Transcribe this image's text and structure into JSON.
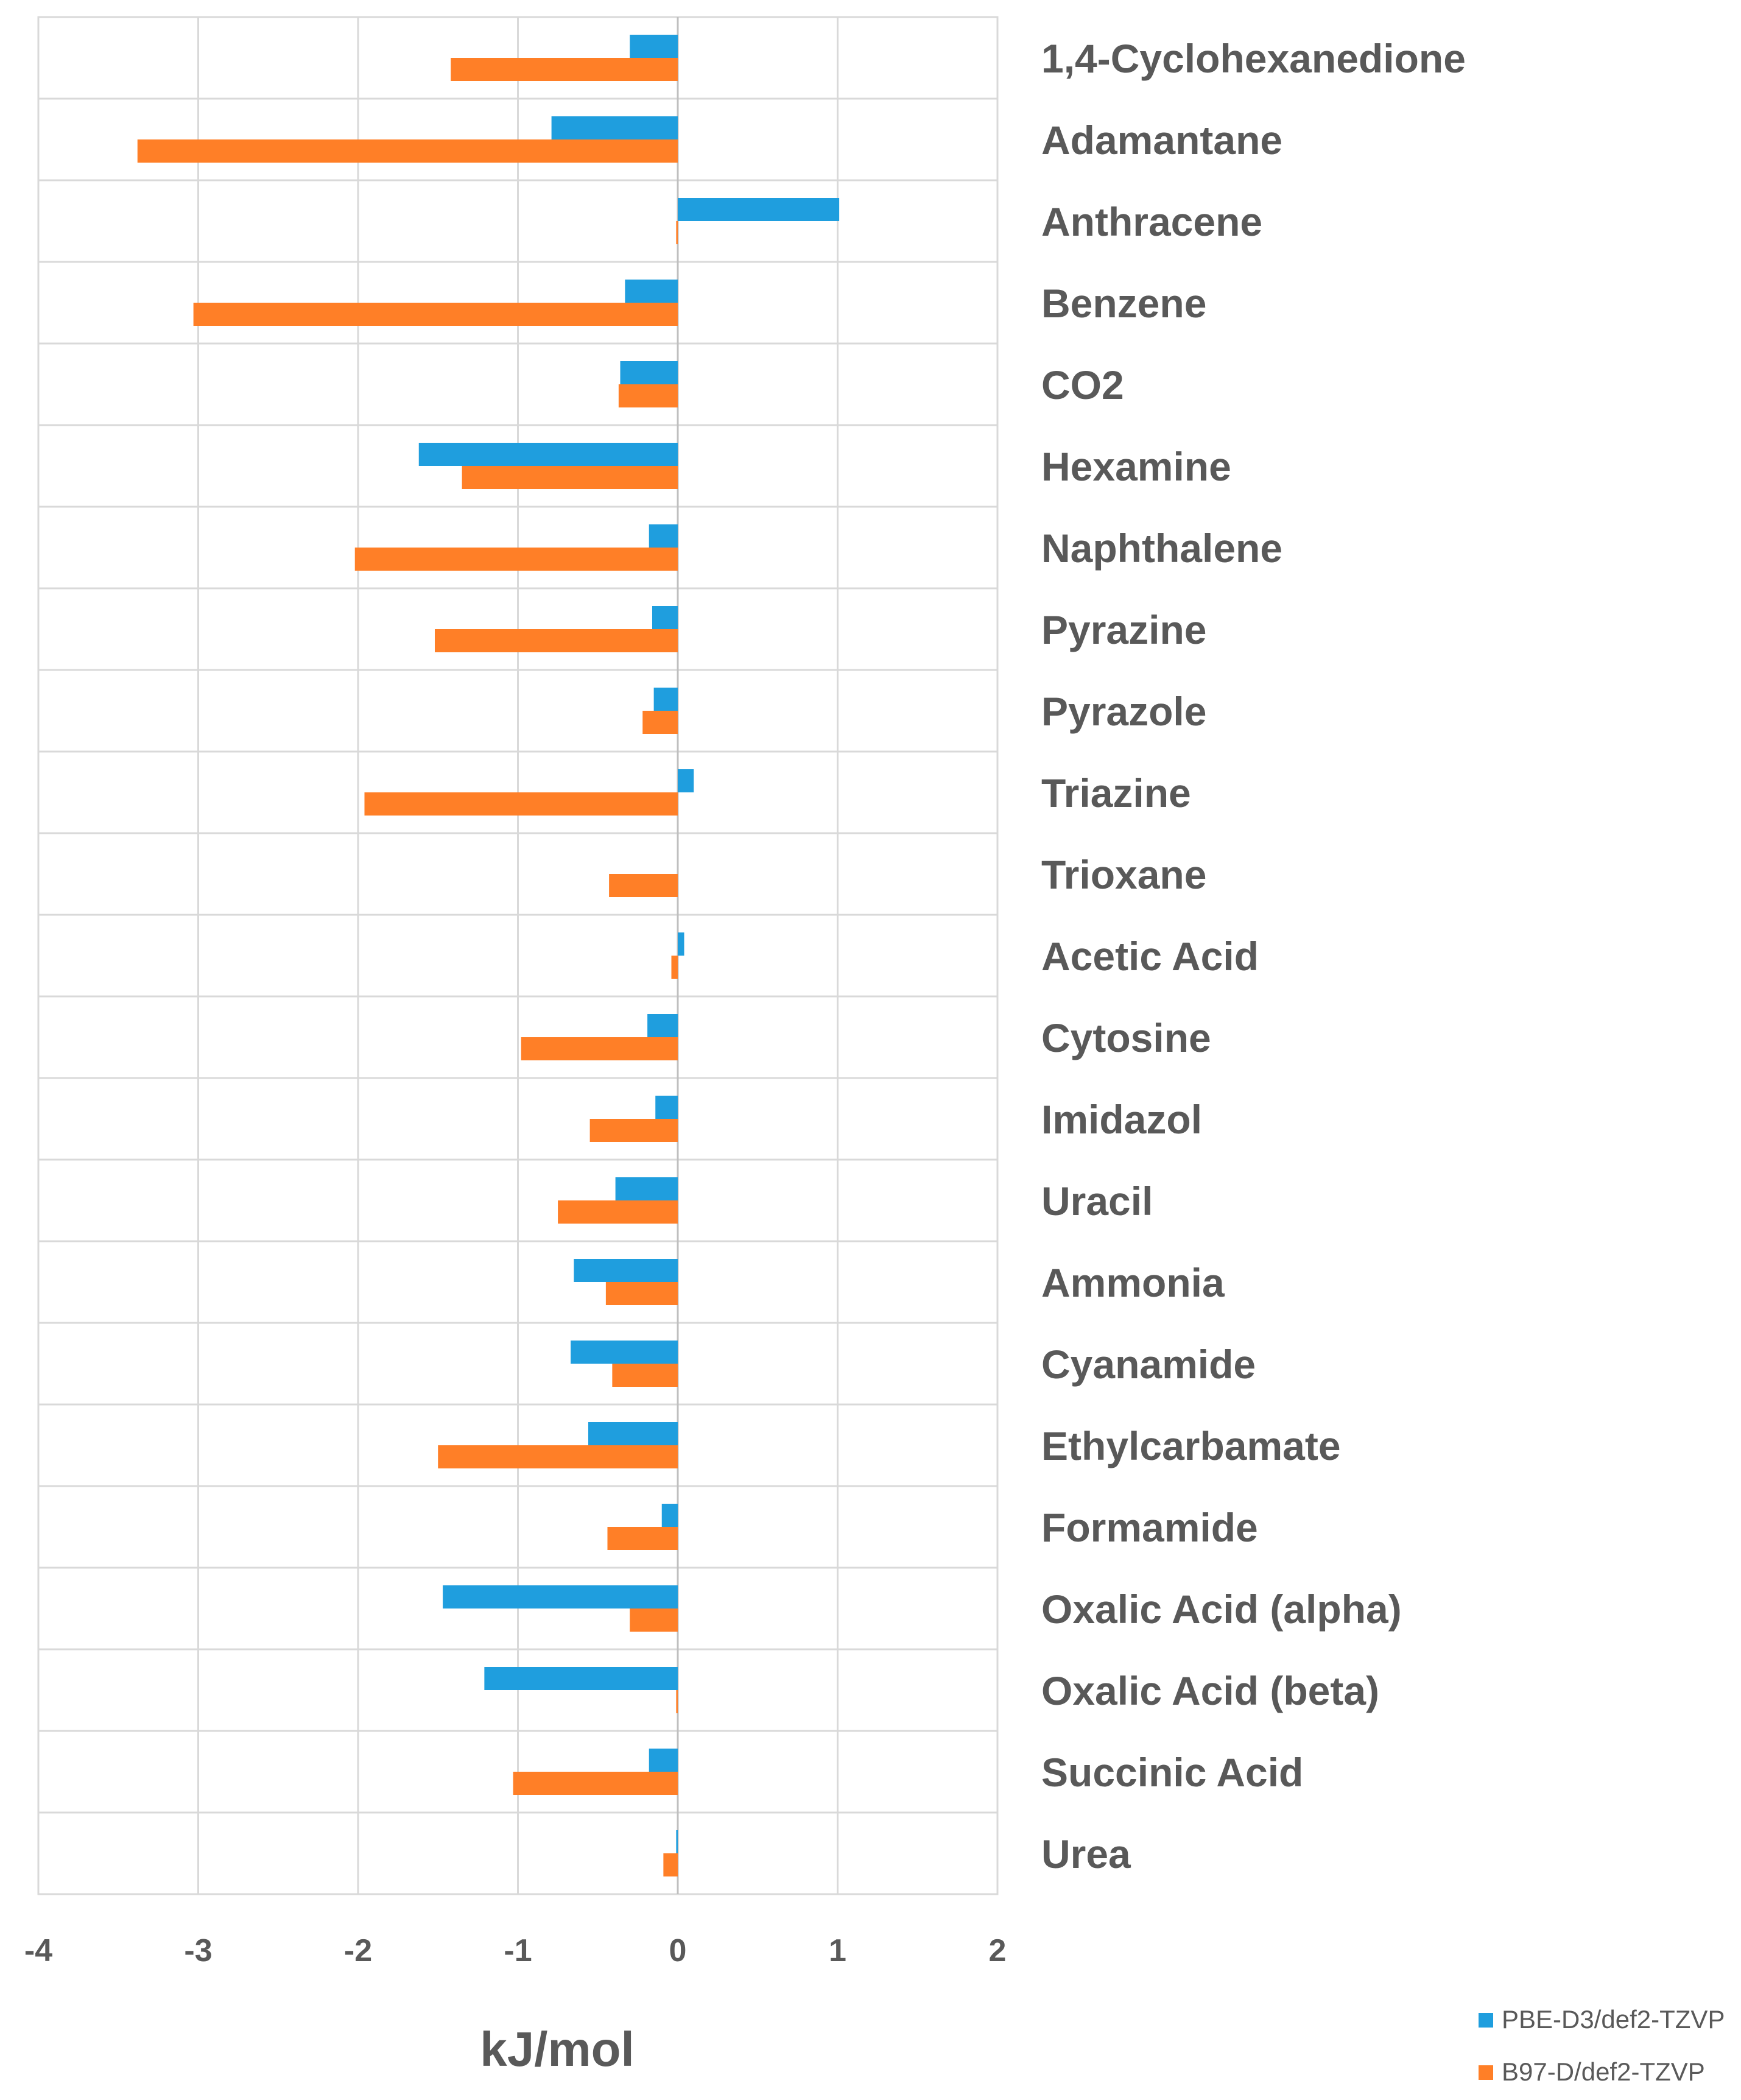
{
  "chart_data": {
    "type": "bar",
    "orientation": "horizontal",
    "title": "",
    "xlabel": "kJ/mol",
    "ylabel": "",
    "xlim": [
      -4,
      2
    ],
    "x_ticks": [
      -4,
      -3,
      -2,
      -1,
      0,
      1,
      2
    ],
    "grid": true,
    "legend_position": "bottom-right",
    "categories": [
      "1,4-Cyclohexanedione",
      "Adamantane",
      "Anthracene",
      "Benzene",
      "CO2",
      "Hexamine",
      "Naphthalene",
      "Pyrazine",
      "Pyrazole",
      "Triazine",
      "Trioxane",
      "Acetic Acid",
      "Cytosine",
      "Imidazol",
      "Uracil",
      "Ammonia",
      "Cyanamide",
      "Ethylcarbamate",
      "Formamide",
      "Oxalic Acid (alpha)",
      "Oxalic Acid (beta)",
      "Succinic Acid",
      "Urea"
    ],
    "series": [
      {
        "name": "PBE-D3/def2-TZVP",
        "color": "#1f9ede",
        "values": [
          -0.3,
          -0.79,
          1.01,
          -0.33,
          -0.36,
          -1.62,
          -0.18,
          -0.16,
          -0.15,
          0.1,
          0.0,
          0.04,
          -0.19,
          -0.14,
          -0.39,
          -0.65,
          -0.67,
          -0.56,
          -0.1,
          -1.47,
          -1.21,
          -0.18,
          -0.01
        ]
      },
      {
        "name": "B97-D/def2-TZVP",
        "color": "#ff7f27",
        "values": [
          -1.42,
          -3.38,
          -0.01,
          -3.03,
          -0.37,
          -1.35,
          -2.02,
          -1.52,
          -0.22,
          -1.96,
          -0.43,
          -0.04,
          -0.98,
          -0.55,
          -0.75,
          -0.45,
          -0.41,
          -1.5,
          -0.44,
          -0.3,
          -0.01,
          -1.03,
          -0.09
        ]
      }
    ]
  }
}
